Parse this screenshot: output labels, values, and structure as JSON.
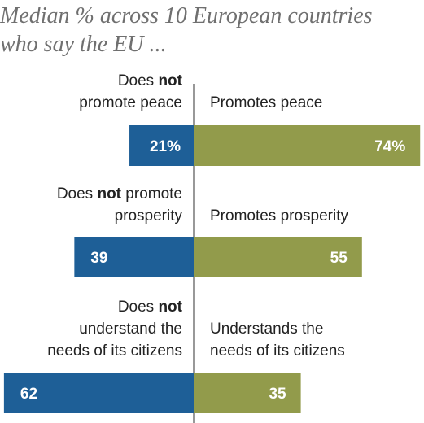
{
  "title": "Median % across 10 European countries\nwho say the EU ...",
  "colors": {
    "negative": "#1e5f97",
    "positive": "#929b4b",
    "axis": "#555555"
  },
  "chart_data": {
    "type": "bar",
    "orientation": "horizontal-diverging",
    "title": "Median % across 10 European countries who say the EU ...",
    "xlim": [
      -62,
      74
    ],
    "categories": [
      {
        "neg_label": [
          [
            {
              "t": "Does "
            },
            {
              "t": "not",
              "b": true
            }
          ],
          [
            {
              "t": "promote peace"
            }
          ]
        ],
        "pos_label": [
          "Promotes peace"
        ],
        "neg_value": 21,
        "neg_text": "21%",
        "pos_value": 74,
        "pos_text": "74%"
      },
      {
        "neg_label": [
          [
            {
              "t": "Does "
            },
            {
              "t": "not",
              "b": true
            },
            {
              "t": " promote"
            }
          ],
          [
            {
              "t": "prosperity"
            }
          ]
        ],
        "pos_label": [
          "Promotes prosperity"
        ],
        "neg_value": 39,
        "neg_text": "39",
        "pos_value": 55,
        "pos_text": "55"
      },
      {
        "neg_label": [
          [
            {
              "t": "Does "
            },
            {
              "t": "not",
              "b": true
            }
          ],
          [
            {
              "t": "understand the"
            }
          ],
          [
            {
              "t": "needs of its citizens"
            }
          ]
        ],
        "pos_label": [
          "Understands the",
          "needs of its citizens"
        ],
        "neg_value": 62,
        "neg_text": "62",
        "pos_value": 35,
        "pos_text": "35"
      }
    ],
    "series": [
      {
        "values": [
          21,
          39,
          62
        ]
      },
      {
        "values": [
          74,
          55,
          35
        ]
      }
    ]
  }
}
